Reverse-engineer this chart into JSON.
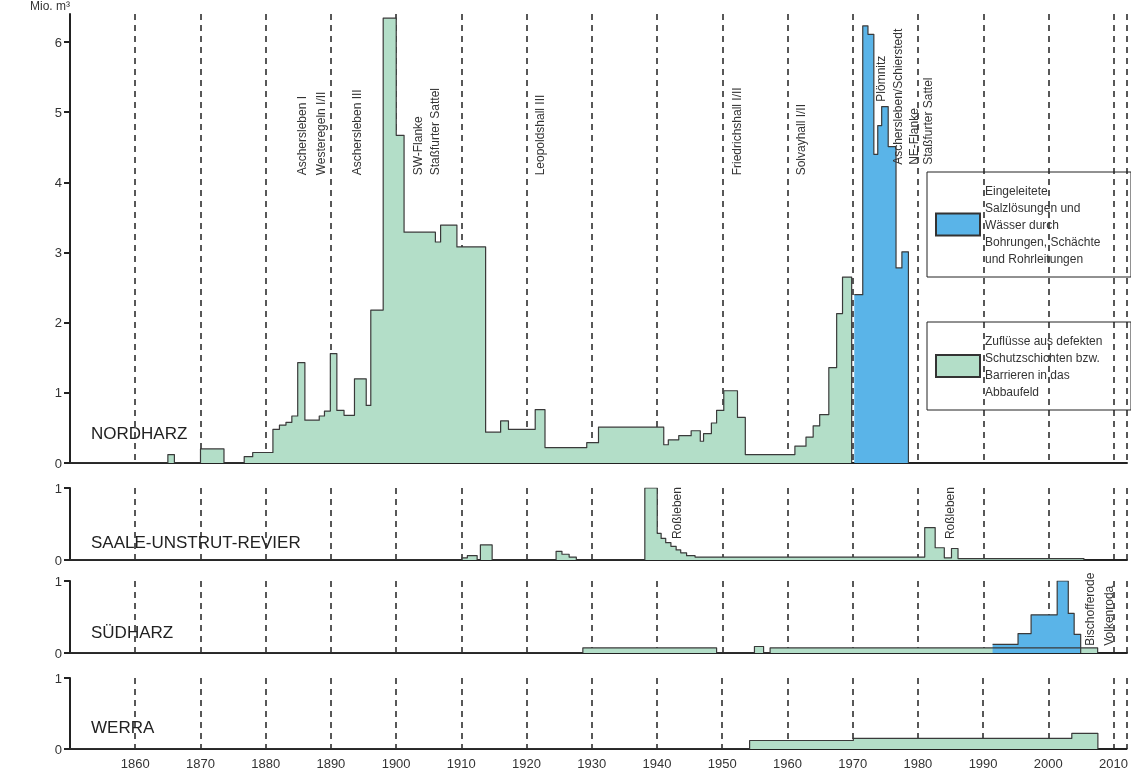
{
  "chart_data": [
    {
      "type": "area",
      "title": "NORDHARZ",
      "ylabel": "Mio. m³",
      "xlim": [
        1850,
        2012
      ],
      "xticks": [
        1860,
        1870,
        1880,
        1890,
        1900,
        1910,
        1920,
        1930,
        1940,
        1950,
        1960,
        1970,
        1980,
        1990,
        2000,
        2010
      ],
      "ylim": [
        0,
        6.4
      ],
      "yticks": [
        0,
        1,
        2,
        3,
        4,
        5,
        6
      ],
      "grid": "x",
      "tick_labels": "y",
      "legend": "right",
      "series": [
        {
          "name": "Eingeleitete Salzlösungen und Wässer durch Bohrungen, Schächte und Rohrleitungen",
          "color": "#5ab4e8",
          "x": [
            1970.2,
            1971.5,
            1972.3,
            1973.2,
            1973.8,
            1974.4,
            1975.4,
            1976.6,
            1977.5,
            1978.5
          ],
          "values": [
            2.4,
            6.23,
            6.11,
            4.4,
            4.81,
            5.08,
            4.51,
            2.78,
            3.01,
            0
          ]
        },
        {
          "name": "Zuflüsse aus defekten Schutzschichten bzw. Barrieren in das Abbaufeld",
          "color": "#b3dec8",
          "x": [
            1850,
            1865,
            1866,
            1870,
            1873.6,
            1876.7,
            1878,
            1881.1,
            1882.1,
            1883.1,
            1884,
            1884.9,
            1886,
            1888.2,
            1889,
            1889.9,
            1890.9,
            1892,
            1893.6,
            1895.4,
            1896.1,
            1898,
            1900,
            1901.2,
            1906,
            1906.8,
            1909.3,
            1913.7,
            1916,
            1917.2,
            1921.3,
            1922.8,
            1929.2,
            1931,
            1941,
            1941.7,
            1943.3,
            1945.2,
            1946.6,
            1947.1,
            1948.3,
            1949.1,
            1950.2,
            1952.3,
            1953.5,
            1961.1,
            1962.8,
            1963.9,
            1964.9,
            1966.3,
            1967.5,
            1968.4,
            1969.8
          ],
          "values": [
            0,
            0.12,
            0,
            0.2,
            0,
            0.09,
            0.15,
            0.48,
            0.54,
            0.58,
            0.67,
            1.43,
            0.61,
            0.67,
            0.74,
            1.56,
            0.75,
            0.68,
            1.2,
            0.82,
            2.18,
            6.34,
            4.67,
            3.29,
            3.15,
            3.39,
            3.08,
            0.44,
            0.6,
            0.48,
            0.76,
            0.22,
            0.29,
            0.51,
            0.26,
            0.33,
            0.39,
            0.46,
            0.31,
            0.42,
            0.57,
            0.75,
            1.03,
            0.65,
            0.12,
            0.24,
            0.37,
            0.53,
            0.69,
            1.36,
            2.13,
            2.65,
            0
          ]
        }
      ],
      "annotations": [
        "Aschersleben I",
        "Westeregeln I/II",
        "Aschersleben III",
        "SW-Flanke",
        "Staßfurter Sattel",
        "Leopoldshall III",
        "Friedrichshall I/II",
        "Solvayhall I/II",
        "Plömnitz",
        "Aschersleben/Schierstedt",
        "NE-Flanke",
        "Staßfurter Sattel"
      ]
    },
    {
      "type": "area",
      "title": "SAALE-UNSTRUT-REVIER",
      "xlim": [
        1850,
        2012
      ],
      "xticks": [
        1860,
        1870,
        1880,
        1890,
        1900,
        1910,
        1920,
        1930,
        1940,
        1950,
        1960,
        1970,
        1980,
        1990,
        2000,
        2010
      ],
      "ylim": [
        0,
        1
      ],
      "yticks": [
        0,
        1
      ],
      "grid": "x",
      "tick_labels": "y",
      "series": [
        {
          "color": "#b3dec8",
          "x": [
            1850,
            1910.1,
            1910.9,
            1912.4,
            1912.9,
            1914.7,
            1924.5,
            1925.4,
            1926.5,
            1927.6,
            1938.1,
            1940,
            1940.6,
            1941.3,
            1942.1,
            1942.9,
            1943.6,
            1944.5,
            1945.8,
            1981,
            1982.6,
            1984,
            1985.1,
            1986.1,
            2005.4
          ],
          "values": [
            0,
            0.03,
            0.06,
            0,
            0.21,
            0,
            0.12,
            0.08,
            0.04,
            0,
            1,
            0.37,
            0.3,
            0.24,
            0.19,
            0.14,
            0.1,
            0.06,
            0.04,
            0.45,
            0.17,
            0.03,
            0.16,
            0.02,
            0
          ]
        }
      ],
      "annotations": [
        "Roßleben",
        "Roßleben"
      ]
    },
    {
      "type": "area",
      "title": "SÜDHARZ",
      "xlim": [
        1850,
        2012
      ],
      "xticks": [
        1860,
        1870,
        1880,
        1890,
        1900,
        1910,
        1920,
        1930,
        1940,
        1950,
        1960,
        1970,
        1980,
        1990,
        2000,
        2010
      ],
      "ylim": [
        0,
        1
      ],
      "yticks": [
        0,
        1
      ],
      "grid": "x",
      "tick_labels": "y",
      "series": [
        {
          "color": "#b3dec8",
          "x": [
            1850,
            1928.6,
            1949.1,
            1954.9,
            1956.3,
            1957.3,
            2007.5
          ],
          "values": [
            0,
            0.07,
            0,
            0.09,
            0,
            0.07,
            0
          ]
        },
        {
          "color": "#5ab4e8",
          "x": [
            1991.4,
            1995.3,
            1997.3,
            2001.3,
            2003,
            2003.9,
            2004.9
          ],
          "values": [
            0.12,
            0.27,
            0.53,
            1,
            0.55,
            0.26,
            0
          ]
        }
      ],
      "annotations": [
        "Bischofferode",
        "Volkenroda"
      ]
    },
    {
      "type": "area",
      "title": "WERRA",
      "xlim": [
        1850,
        2012
      ],
      "xticks": [
        1860,
        1870,
        1880,
        1890,
        1900,
        1910,
        1920,
        1930,
        1940,
        1950,
        1960,
        1970,
        1980,
        1990,
        2000,
        2010
      ],
      "ylim": [
        0,
        1
      ],
      "yticks": [
        0,
        1
      ],
      "grid": "x",
      "series": [
        {
          "color": "#b3dec8",
          "x": [
            1850,
            1954.2,
            1970.1,
            2003.6,
            2007.6
          ],
          "values": [
            0,
            0.12,
            0.15,
            0.22,
            0
          ]
        }
      ]
    }
  ]
}
